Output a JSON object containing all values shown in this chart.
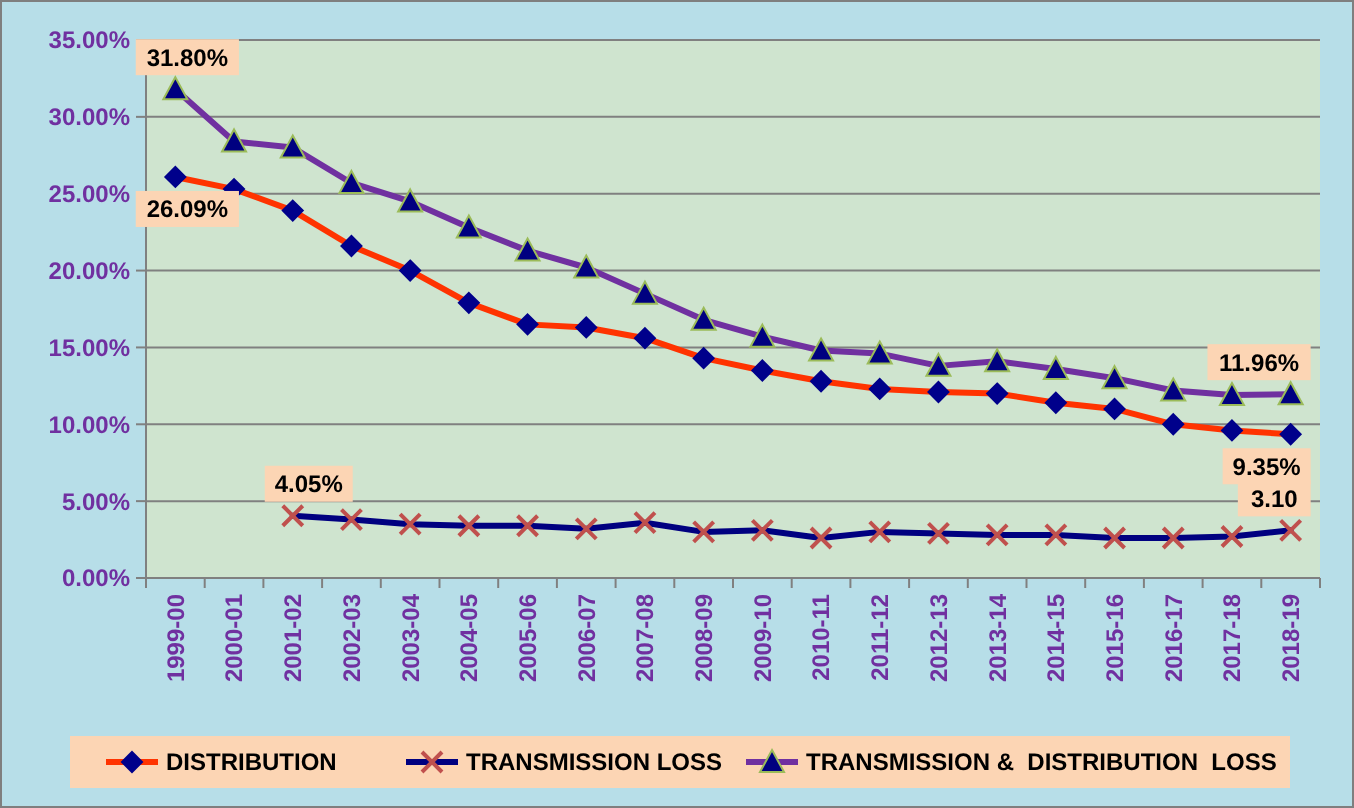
{
  "chart_data": {
    "type": "line",
    "categories": [
      "1999-00",
      "2000-01",
      "2001-02",
      "2002-03",
      "2003-04",
      "2004-05",
      "2005-06",
      "2006-07",
      "2007-08",
      "2008-09",
      "2009-10",
      "2010-11",
      "2011-12",
      "2012-13",
      "2013-14",
      "2014-15",
      "2015-16",
      "2016-17",
      "2017-18",
      "2018-19"
    ],
    "series": [
      {
        "name": "DISTRIBUTION",
        "color": "#ff3300",
        "marker": "diamond",
        "values": [
          26.09,
          25.3,
          23.9,
          21.6,
          20.0,
          17.9,
          16.5,
          16.3,
          15.6,
          14.3,
          13.5,
          12.8,
          12.3,
          12.1,
          12.0,
          11.4,
          11.0,
          10.0,
          9.6,
          9.35
        ],
        "value_labels": [
          "26.09%",
          null,
          null,
          null,
          null,
          null,
          null,
          null,
          null,
          null,
          null,
          null,
          null,
          null,
          null,
          null,
          null,
          null,
          null,
          "9.35%"
        ]
      },
      {
        "name": "TRANSMISSION LOSS",
        "color": "#000080",
        "marker": "cross",
        "values": [
          null,
          null,
          4.05,
          3.8,
          3.5,
          3.4,
          3.4,
          3.2,
          3.6,
          3.0,
          3.1,
          2.6,
          3.0,
          2.9,
          2.8,
          2.8,
          2.6,
          2.6,
          2.7,
          3.1
        ],
        "value_labels": [
          null,
          null,
          "4.05%",
          null,
          null,
          null,
          null,
          null,
          null,
          null,
          null,
          null,
          null,
          null,
          null,
          null,
          null,
          null,
          null,
          "3.10"
        ]
      },
      {
        "name": "TRANSMISSION &  DISTRIBUTION  LOSS",
        "color": "#7030a0",
        "marker": "triangle",
        "values": [
          31.8,
          28.4,
          28.0,
          25.7,
          24.5,
          22.8,
          21.3,
          20.2,
          18.5,
          16.8,
          15.7,
          14.8,
          14.6,
          13.8,
          14.1,
          13.6,
          13.0,
          12.2,
          11.9,
          11.96
        ],
        "value_labels": [
          "31.80%",
          null,
          null,
          null,
          null,
          null,
          null,
          null,
          null,
          null,
          null,
          null,
          null,
          null,
          null,
          null,
          null,
          null,
          null,
          "11.96%"
        ]
      }
    ],
    "ylim": [
      0,
      35
    ],
    "yticks": [
      {
        "value": 0,
        "label": "0.00%"
      },
      {
        "value": 5,
        "label": "5.00%"
      },
      {
        "value": 10,
        "label": "10.00%"
      },
      {
        "value": 15,
        "label": "15.00%"
      },
      {
        "value": 20,
        "label": "20.00%"
      },
      {
        "value": 25,
        "label": "25.00%"
      },
      {
        "value": 30,
        "label": "30.00%"
      },
      {
        "value": 35,
        "label": "35.00%"
      }
    ],
    "grid": "y",
    "legend": "bottom"
  }
}
